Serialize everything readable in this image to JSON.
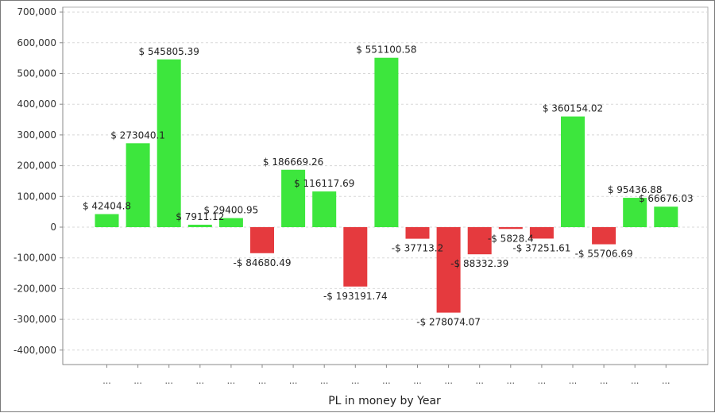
{
  "chart_data": {
    "type": "bar",
    "title": "",
    "xlabel": "PL in money by Year",
    "ylabel": "",
    "ylim": [
      -450000,
      700000
    ],
    "yticks": [
      700000,
      600000,
      500000,
      400000,
      300000,
      200000,
      100000,
      0,
      -100000,
      -200000,
      -300000,
      -400000
    ],
    "ytick_labels": [
      "700,000",
      "600,000",
      "500,000",
      "400,000",
      "300,000",
      "200,000",
      "100,000",
      "0",
      "-100,000",
      "-200,000",
      "-300,000",
      "-400,000"
    ],
    "grid": true,
    "legend": "none",
    "categories": [
      "...",
      "...",
      "...",
      "...",
      "...",
      "...",
      "...",
      "...",
      "...",
      "...",
      "...",
      "...",
      "...",
      "...",
      "...",
      "...",
      "...",
      "...",
      "..."
    ],
    "values": [
      42404.8,
      273040.1,
      545805.39,
      7911.12,
      29400.95,
      -84680.49,
      186669.26,
      116117.69,
      -193191.74,
      551100.58,
      -37713.2,
      -278074.07,
      -88332.39,
      -5828.4,
      -37251.61,
      360154.02,
      -55706.69,
      95436.88,
      66676.03
    ],
    "data_labels": [
      "$ 42404.8",
      "$ 273040.1",
      "$ 545805.39",
      "$ 7911.12",
      "$ 29400.95",
      "-$ 84680.49",
      "$ 186669.26",
      "$ 116117.69",
      "-$ 193191.74",
      "$ 551100.58",
      "-$ 37713.2",
      "-$ 278074.07",
      "-$ 88332.39",
      "-$ 5828.4",
      "-$ 37251.61",
      "$ 360154.02",
      "-$ 55706.69",
      "$ 95436.88",
      "$ 66676.03"
    ],
    "colors": {
      "positive": "#3de63d",
      "negative": "#e53a3e",
      "grid": "#d8d8d8",
      "axis": "#888888"
    }
  }
}
